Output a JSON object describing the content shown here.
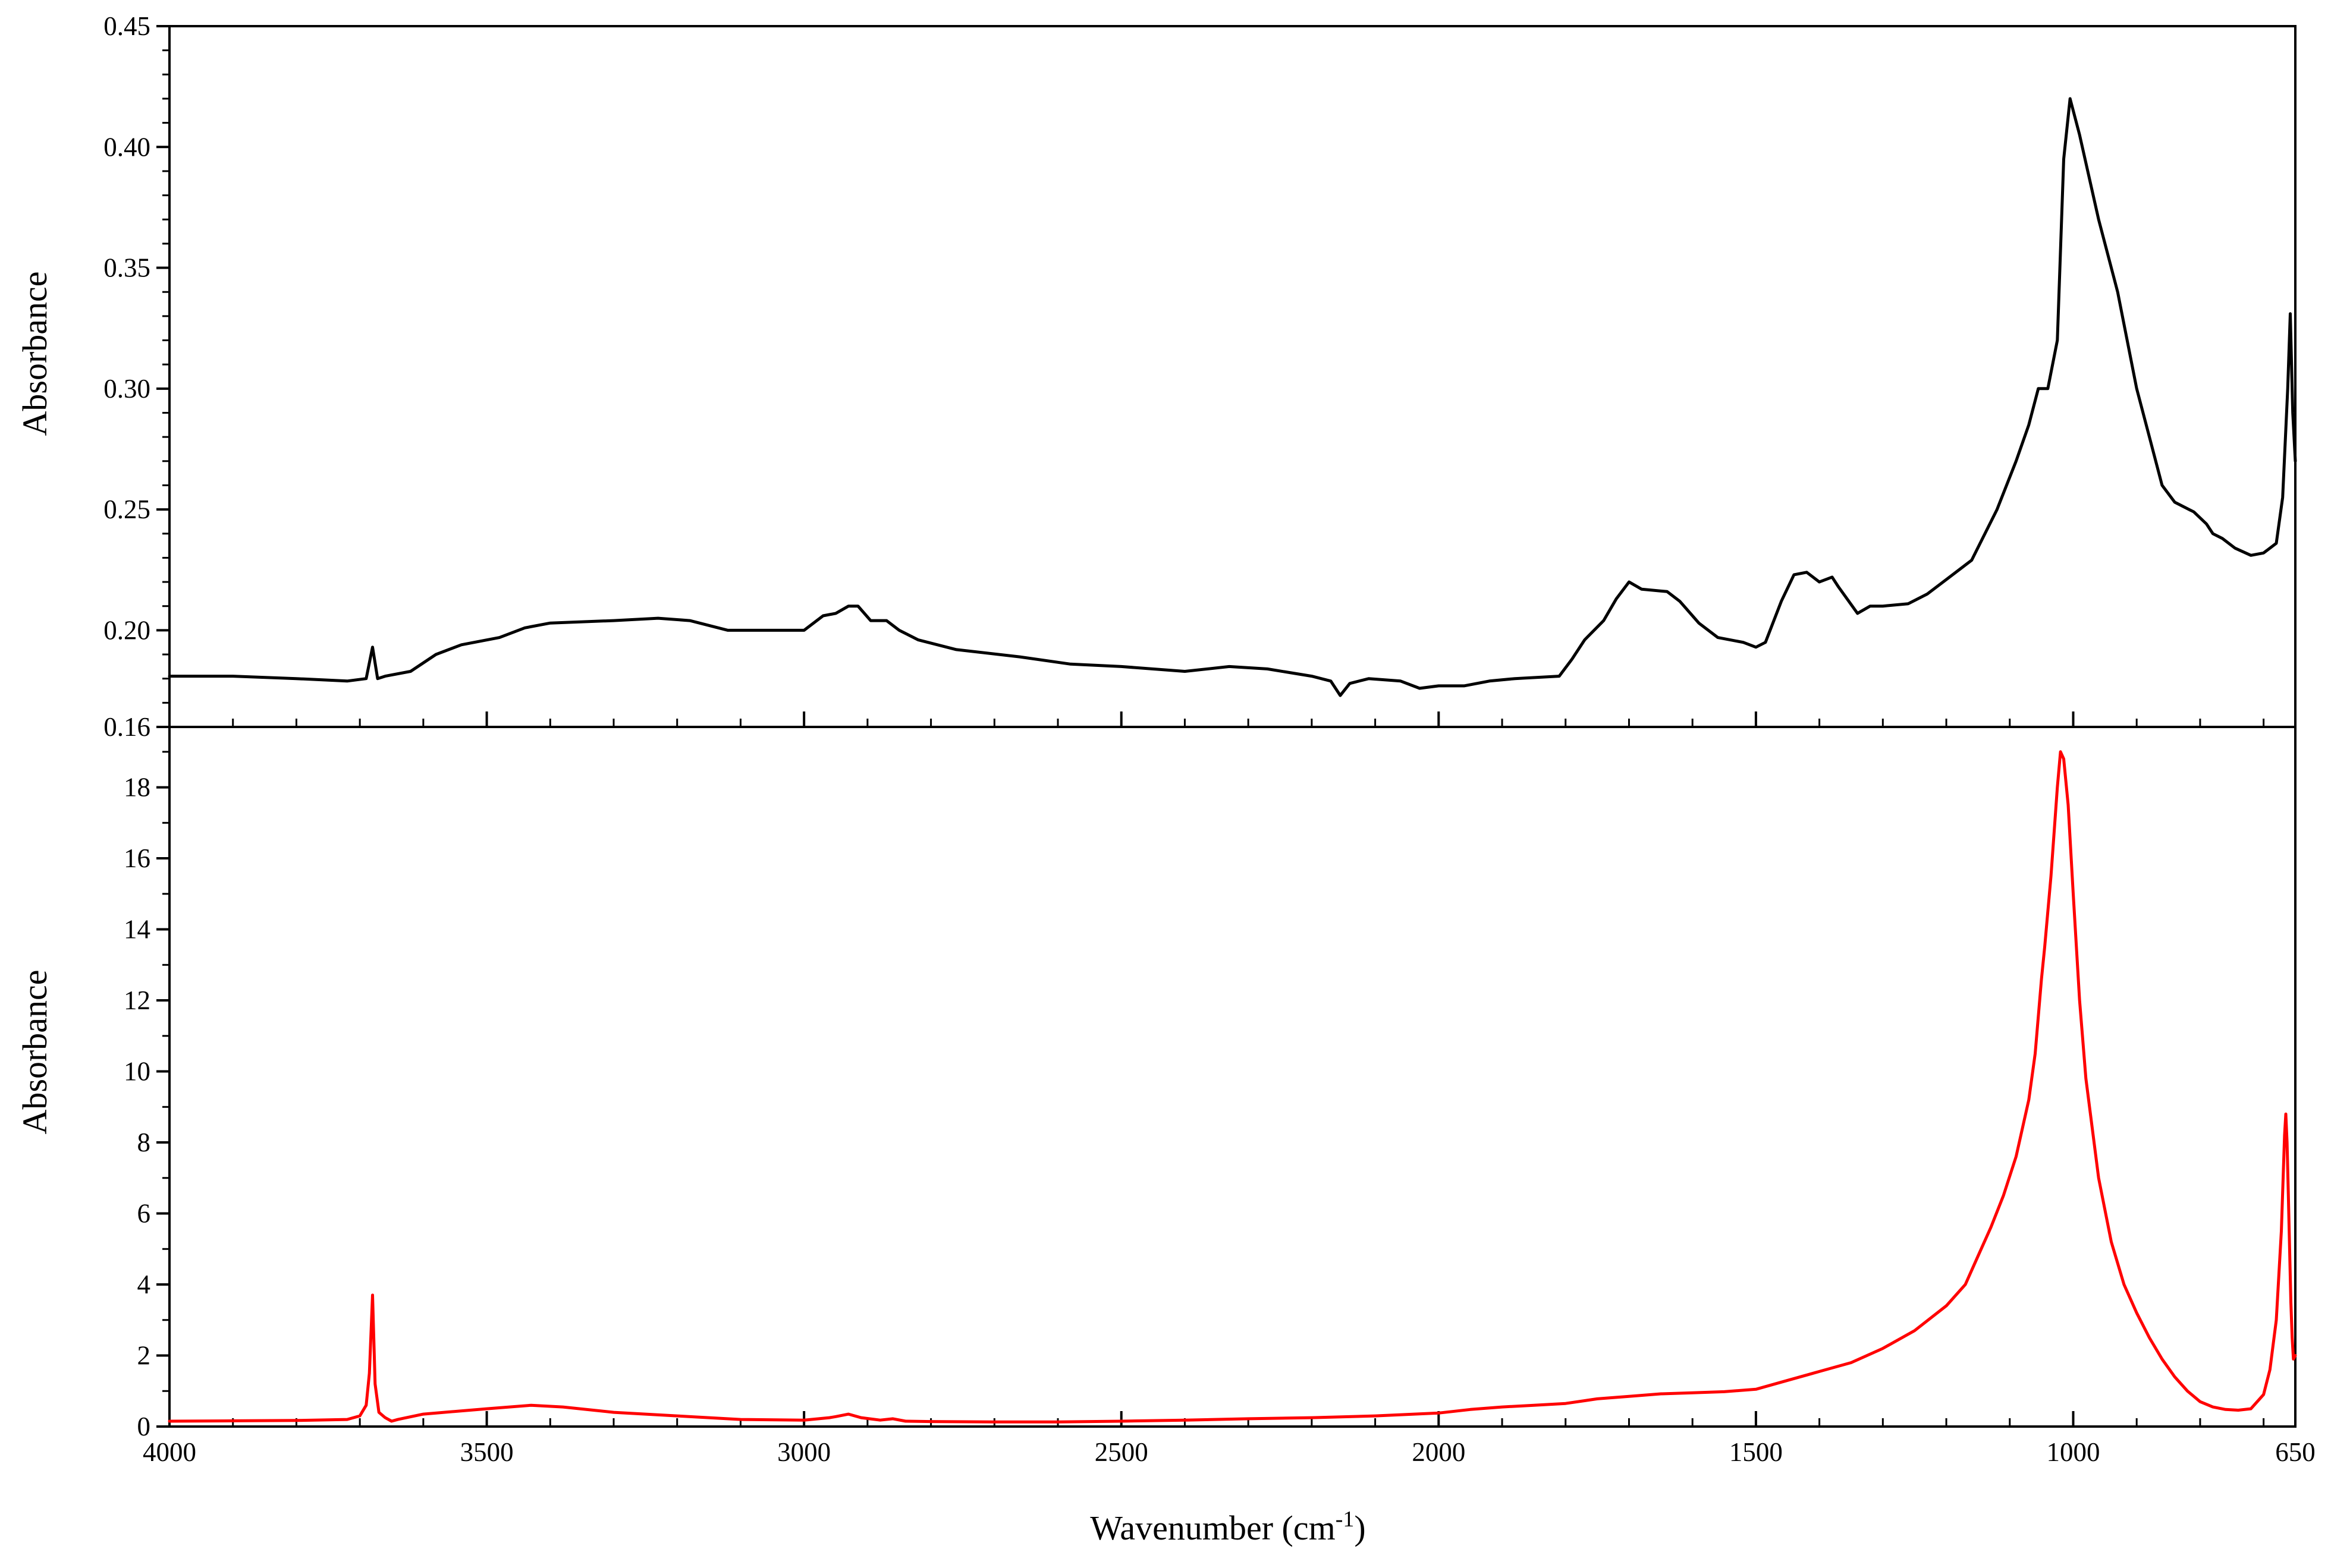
{
  "chart_data": [
    {
      "type": "line",
      "panel": "top",
      "ylabel": "Absorbance",
      "xlim": [
        4000,
        650
      ],
      "x_reversed": true,
      "ylim": [
        0.16,
        0.45
      ],
      "yticks": [
        0.16,
        0.2,
        0.25,
        0.3,
        0.35,
        0.4,
        0.45
      ],
      "ytick_labels": [
        "0.16",
        "0.20",
        "0.25",
        "0.30",
        "0.35",
        "0.40",
        "0.45"
      ],
      "series": [
        {
          "color": "#000000",
          "x": [
            4000,
            3900,
            3800,
            3720,
            3690,
            3680,
            3672,
            3660,
            3620,
            3580,
            3540,
            3480,
            3440,
            3400,
            3300,
            3230,
            3180,
            3120,
            3060,
            3000,
            2970,
            2950,
            2930,
            2915,
            2895,
            2870,
            2850,
            2820,
            2760,
            2660,
            2580,
            2500,
            2400,
            2330,
            2270,
            2200,
            2170,
            2155,
            2140,
            2110,
            2060,
            2030,
            2000,
            1980,
            1960,
            1920,
            1880,
            1810,
            1790,
            1770,
            1740,
            1720,
            1700,
            1680,
            1640,
            1620,
            1590,
            1560,
            1520,
            1500,
            1485,
            1460,
            1440,
            1420,
            1400,
            1380,
            1370,
            1340,
            1320,
            1300,
            1260,
            1230,
            1200,
            1160,
            1120,
            1090,
            1070,
            1055,
            1040,
            1025,
            1015,
            1005,
            990,
            960,
            930,
            900,
            880,
            860,
            840,
            810,
            790,
            780,
            765,
            745,
            720,
            700,
            680,
            670,
            662,
            658,
            654,
            650
          ],
          "y": [
            0.181,
            0.181,
            0.18,
            0.179,
            0.18,
            0.193,
            0.18,
            0.181,
            0.183,
            0.19,
            0.194,
            0.197,
            0.201,
            0.203,
            0.204,
            0.205,
            0.204,
            0.2,
            0.2,
            0.2,
            0.206,
            0.207,
            0.21,
            0.21,
            0.204,
            0.204,
            0.2,
            0.196,
            0.192,
            0.189,
            0.186,
            0.185,
            0.183,
            0.185,
            0.184,
            0.181,
            0.179,
            0.173,
            0.178,
            0.18,
            0.179,
            0.176,
            0.177,
            0.177,
            0.177,
            0.179,
            0.18,
            0.181,
            0.188,
            0.196,
            0.204,
            0.213,
            0.22,
            0.217,
            0.216,
            0.212,
            0.203,
            0.197,
            0.195,
            0.193,
            0.195,
            0.212,
            0.223,
            0.224,
            0.22,
            0.222,
            0.218,
            0.207,
            0.21,
            0.21,
            0.211,
            0.215,
            0.221,
            0.229,
            0.25,
            0.27,
            0.285,
            0.3,
            0.3,
            0.32,
            0.395,
            0.42,
            0.405,
            0.37,
            0.34,
            0.3,
            0.28,
            0.26,
            0.253,
            0.249,
            0.244,
            0.24,
            0.238,
            0.234,
            0.231,
            0.232,
            0.236,
            0.255,
            0.3,
            0.331,
            0.29,
            0.27
          ]
        }
      ]
    },
    {
      "type": "line",
      "panel": "bottom",
      "xlabel": "Wavenumber (cm",
      "xlabel_sup": "-1",
      "xlabel_end": ")",
      "ylabel": "Absorbance",
      "xlim": [
        4000,
        650
      ],
      "x_reversed": true,
      "xticks": [
        4000,
        3500,
        3000,
        2500,
        2000,
        1500,
        1000,
        650
      ],
      "xtick_labels": [
        "4000",
        "3500",
        "3000",
        "2500",
        "2000",
        "1500",
        "1000",
        "650"
      ],
      "ylim": [
        0,
        19.7
      ],
      "yticks": [
        0,
        2,
        4,
        6,
        8,
        10,
        12,
        14,
        16,
        18
      ],
      "ytick_labels": [
        "0",
        "2",
        "4",
        "6",
        "8",
        "10",
        "12",
        "14",
        "16",
        "18"
      ],
      "series": [
        {
          "color": "#ff0000",
          "x": [
            4000,
            3900,
            3800,
            3720,
            3700,
            3690,
            3685,
            3680,
            3676,
            3670,
            3660,
            3650,
            3640,
            3600,
            3500,
            3430,
            3380,
            3300,
            3200,
            3100,
            3000,
            2960,
            2950,
            2930,
            2910,
            2880,
            2860,
            2840,
            2800,
            2700,
            2600,
            2500,
            2400,
            2300,
            2200,
            2100,
            2000,
            1950,
            1900,
            1850,
            1800,
            1750,
            1700,
            1650,
            1600,
            1550,
            1500,
            1450,
            1400,
            1350,
            1300,
            1250,
            1200,
            1170,
            1150,
            1130,
            1110,
            1090,
            1070,
            1060,
            1050,
            1045,
            1035,
            1025,
            1020,
            1015,
            1008,
            1000,
            990,
            980,
            960,
            940,
            920,
            900,
            880,
            860,
            840,
            820,
            800,
            780,
            760,
            740,
            720,
            700,
            690,
            680,
            672,
            667,
            665,
            663,
            661,
            659,
            657,
            655,
            653,
            650
          ],
          "y": [
            0.15,
            0.16,
            0.17,
            0.2,
            0.3,
            0.6,
            1.5,
            3.7,
            1.2,
            0.4,
            0.25,
            0.15,
            0.2,
            0.35,
            0.5,
            0.6,
            0.55,
            0.4,
            0.3,
            0.2,
            0.18,
            0.25,
            0.28,
            0.35,
            0.25,
            0.18,
            0.22,
            0.15,
            0.14,
            0.13,
            0.13,
            0.15,
            0.18,
            0.22,
            0.25,
            0.3,
            0.38,
            0.48,
            0.55,
            0.6,
            0.65,
            0.78,
            0.85,
            0.92,
            0.95,
            0.98,
            1.05,
            1.3,
            1.55,
            1.8,
            2.2,
            2.7,
            3.4,
            4.0,
            4.8,
            5.6,
            6.5,
            7.6,
            9.2,
            10.5,
            12.6,
            13.5,
            15.5,
            18.0,
            19.0,
            18.8,
            17.5,
            15.0,
            12.0,
            9.8,
            7.0,
            5.2,
            4.0,
            3.2,
            2.5,
            1.9,
            1.4,
            1.0,
            0.7,
            0.55,
            0.48,
            0.46,
            0.5,
            0.9,
            1.6,
            3.0,
            5.5,
            8.2,
            8.8,
            8.0,
            6.5,
            5.0,
            3.5,
            2.5,
            1.9,
            2.0
          ]
        }
      ]
    }
  ]
}
